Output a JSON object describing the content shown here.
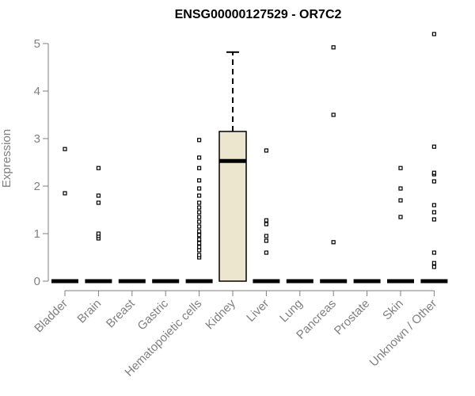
{
  "chart_data": {
    "type": "box",
    "title": "ENSG00000127529 - OR7C2",
    "xlabel": "",
    "ylabel": "Expression",
    "ylim": [
      0,
      5.2
    ],
    "yticks": [
      0,
      1,
      2,
      3,
      4,
      5
    ],
    "grid": false,
    "categories": [
      "Bladder",
      "Brain",
      "Breast",
      "Gastric",
      "Hematopoietic cells",
      "Kidney",
      "Liver",
      "Lung",
      "Pancreas",
      "Prostate",
      "Skin",
      "Unknown / Other"
    ],
    "box_fill": "#ede6cf",
    "series": [
      {
        "category": "Bladder",
        "median": 0,
        "q1": 0,
        "q3": 0,
        "whisker_low": 0,
        "whisker_high": 0,
        "outliers": [
          1.85,
          2.78
        ]
      },
      {
        "category": "Brain",
        "median": 0,
        "q1": 0,
        "q3": 0,
        "whisker_low": 0,
        "whisker_high": 0,
        "outliers": [
          0.9,
          0.95,
          1.0,
          1.65,
          1.8,
          2.38
        ]
      },
      {
        "category": "Breast",
        "median": 0,
        "q1": 0,
        "q3": 0,
        "whisker_low": 0,
        "whisker_high": 0,
        "outliers": []
      },
      {
        "category": "Gastric",
        "median": 0,
        "q1": 0,
        "q3": 0,
        "whisker_low": 0,
        "whisker_high": 0,
        "outliers": []
      },
      {
        "category": "Hematopoietic cells",
        "median": 0,
        "q1": 0,
        "q3": 0,
        "whisker_low": 0,
        "whisker_high": 0,
        "outliers": [
          0.5,
          0.55,
          0.65,
          0.72,
          0.8,
          0.88,
          0.97,
          1.05,
          1.15,
          1.25,
          1.35,
          1.45,
          1.55,
          1.65,
          1.8,
          1.95,
          2.12,
          2.38,
          2.6,
          2.97
        ]
      },
      {
        "category": "Kidney",
        "median": 2.53,
        "q1": 0,
        "q3": 3.15,
        "whisker_low": 0,
        "whisker_high": 4.82,
        "outliers": []
      },
      {
        "category": "Liver",
        "median": 0,
        "q1": 0,
        "q3": 0,
        "whisker_low": 0,
        "whisker_high": 0,
        "outliers": [
          0.6,
          0.85,
          0.95,
          1.2,
          1.28,
          2.75
        ]
      },
      {
        "category": "Lung",
        "median": 0,
        "q1": 0,
        "q3": 0,
        "whisker_low": 0,
        "whisker_high": 0,
        "outliers": []
      },
      {
        "category": "Pancreas",
        "median": 0,
        "q1": 0,
        "q3": 0,
        "whisker_low": 0,
        "whisker_high": 0,
        "outliers": [
          0.82,
          3.5,
          4.92
        ]
      },
      {
        "category": "Prostate",
        "median": 0,
        "q1": 0,
        "q3": 0,
        "whisker_low": 0,
        "whisker_high": 0,
        "outliers": []
      },
      {
        "category": "Skin",
        "median": 0,
        "q1": 0,
        "q3": 0,
        "whisker_low": 0,
        "whisker_high": 0,
        "outliers": [
          1.35,
          1.7,
          1.95,
          2.38
        ]
      },
      {
        "category": "Unknown / Other",
        "median": 0,
        "q1": 0,
        "q3": 0,
        "whisker_low": 0,
        "whisker_high": 0,
        "outliers": [
          0.3,
          0.38,
          0.6,
          1.3,
          1.45,
          1.6,
          2.1,
          2.25,
          2.28,
          2.83,
          5.2
        ]
      }
    ]
  }
}
